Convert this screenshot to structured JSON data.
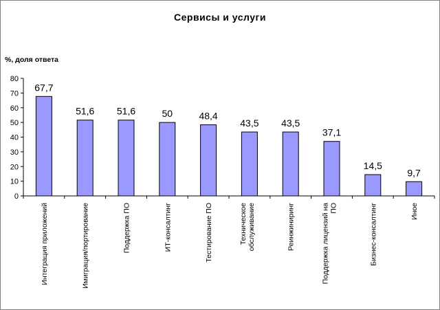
{
  "chart_data": {
    "type": "bar",
    "title": "Сервисы и услуги",
    "ylabel": "%, доля ответа",
    "xlabel": "",
    "ylim": [
      0,
      80
    ],
    "yticks": [
      0,
      10,
      20,
      30,
      40,
      50,
      60,
      70,
      80
    ],
    "grid": false,
    "bar_color": "#9999FF",
    "categories": [
      [
        "Интеграция приложений"
      ],
      [
        "Имиграция/портирование"
      ],
      [
        "Поддержка ПО"
      ],
      [
        "ИТ-консалтинг"
      ],
      [
        "Тестирование ПО"
      ],
      [
        "Техническое",
        "обслуживание"
      ],
      [
        "Реинжиниринг"
      ],
      [
        "Поддержка лицензий на",
        "ПО"
      ],
      [
        "Бизнес-консалтинг"
      ],
      [
        "Иное"
      ]
    ],
    "values": [
      67.7,
      51.6,
      51.6,
      50,
      48.4,
      43.5,
      43.5,
      37.1,
      14.5,
      9.7
    ],
    "value_labels": [
      "67,7",
      "51,6",
      "51,6",
      "50",
      "48,4",
      "43,5",
      "43,5",
      "37,1",
      "14,5",
      "9,7"
    ]
  }
}
